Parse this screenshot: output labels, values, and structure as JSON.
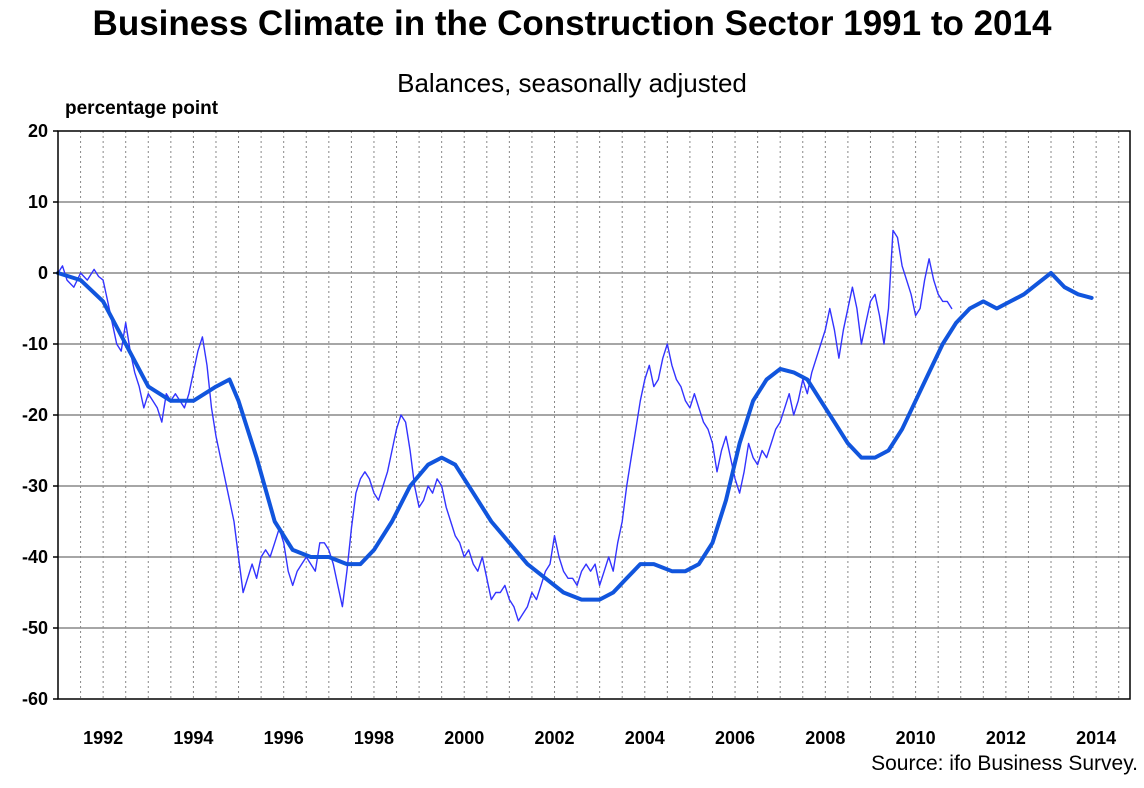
{
  "chart_data": {
    "type": "line",
    "title": "Business Climate in the Construction Sector 1991 to 2014",
    "subtitle": "Balances, seasonally adjusted",
    "ylabel": "percentage point",
    "source": "Source: ifo Business Survey.",
    "ylim": [
      -60,
      20
    ],
    "xlim": [
      1991.0,
      2014.75
    ],
    "yticks": [
      20,
      10,
      0,
      -10,
      -20,
      -30,
      -40,
      -50,
      -60
    ],
    "xticks": [
      1992,
      1994,
      1996,
      1998,
      2000,
      2002,
      2004,
      2006,
      2008,
      2010,
      2012,
      2014
    ],
    "grid": true,
    "colors": {
      "monthly": "#3333ff",
      "trend": "#1155dd"
    },
    "series": [
      {
        "role": "monthly",
        "points": [
          [
            1991.0,
            0
          ],
          [
            1991.1,
            1
          ],
          [
            1991.2,
            -1
          ],
          [
            1991.35,
            -2
          ],
          [
            1991.5,
            0
          ],
          [
            1991.65,
            -1
          ],
          [
            1991.8,
            0.5
          ],
          [
            1991.9,
            -0.5
          ],
          [
            1992.0,
            -1
          ],
          [
            1992.1,
            -4
          ],
          [
            1992.2,
            -7
          ],
          [
            1992.3,
            -10
          ],
          [
            1992.4,
            -11
          ],
          [
            1992.5,
            -7
          ],
          [
            1992.6,
            -11
          ],
          [
            1992.7,
            -14
          ],
          [
            1992.8,
            -16
          ],
          [
            1992.9,
            -19
          ],
          [
            1993.0,
            -17
          ],
          [
            1993.1,
            -18
          ],
          [
            1993.2,
            -19
          ],
          [
            1993.3,
            -21
          ],
          [
            1993.4,
            -17
          ],
          [
            1993.5,
            -18
          ],
          [
            1993.6,
            -17
          ],
          [
            1993.7,
            -18
          ],
          [
            1993.8,
            -19
          ],
          [
            1993.9,
            -17
          ],
          [
            1994.0,
            -14
          ],
          [
            1994.1,
            -11
          ],
          [
            1994.2,
            -9
          ],
          [
            1994.3,
            -13
          ],
          [
            1994.4,
            -19
          ],
          [
            1994.5,
            -23
          ],
          [
            1994.6,
            -26
          ],
          [
            1994.7,
            -29
          ],
          [
            1994.8,
            -32
          ],
          [
            1994.9,
            -35
          ],
          [
            1995.0,
            -40
          ],
          [
            1995.1,
            -45
          ],
          [
            1995.2,
            -43
          ],
          [
            1995.3,
            -41
          ],
          [
            1995.4,
            -43
          ],
          [
            1995.5,
            -40
          ],
          [
            1995.6,
            -39
          ],
          [
            1995.7,
            -40
          ],
          [
            1995.8,
            -38
          ],
          [
            1995.9,
            -36
          ],
          [
            1996.0,
            -38
          ],
          [
            1996.1,
            -42
          ],
          [
            1996.2,
            -44
          ],
          [
            1996.3,
            -42
          ],
          [
            1996.4,
            -41
          ],
          [
            1996.5,
            -40
          ],
          [
            1996.6,
            -41
          ],
          [
            1996.7,
            -42
          ],
          [
            1996.8,
            -38
          ],
          [
            1996.9,
            -38
          ],
          [
            1997.0,
            -39
          ],
          [
            1997.1,
            -41
          ],
          [
            1997.2,
            -44
          ],
          [
            1997.3,
            -47
          ],
          [
            1997.4,
            -42
          ],
          [
            1997.5,
            -36
          ],
          [
            1997.6,
            -31
          ],
          [
            1997.7,
            -29
          ],
          [
            1997.8,
            -28
          ],
          [
            1997.9,
            -29
          ],
          [
            1998.0,
            -31
          ],
          [
            1998.1,
            -32
          ],
          [
            1998.2,
            -30
          ],
          [
            1998.3,
            -28
          ],
          [
            1998.4,
            -25
          ],
          [
            1998.5,
            -22
          ],
          [
            1998.6,
            -20
          ],
          [
            1998.7,
            -21
          ],
          [
            1998.8,
            -25
          ],
          [
            1998.9,
            -30
          ],
          [
            1999.0,
            -33
          ],
          [
            1999.1,
            -32
          ],
          [
            1999.2,
            -30
          ],
          [
            1999.3,
            -31
          ],
          [
            1999.4,
            -29
          ],
          [
            1999.5,
            -30
          ],
          [
            1999.6,
            -33
          ],
          [
            1999.7,
            -35
          ],
          [
            1999.8,
            -37
          ],
          [
            1999.9,
            -38
          ],
          [
            2000.0,
            -40
          ],
          [
            2000.1,
            -39
          ],
          [
            2000.2,
            -41
          ],
          [
            2000.3,
            -42
          ],
          [
            2000.4,
            -40
          ],
          [
            2000.5,
            -43
          ],
          [
            2000.6,
            -46
          ],
          [
            2000.7,
            -45
          ],
          [
            2000.8,
            -45
          ],
          [
            2000.9,
            -44
          ],
          [
            2001.0,
            -46
          ],
          [
            2001.1,
            -47
          ],
          [
            2001.2,
            -49
          ],
          [
            2001.3,
            -48
          ],
          [
            2001.4,
            -47
          ],
          [
            2001.5,
            -45
          ],
          [
            2001.6,
            -46
          ],
          [
            2001.7,
            -44
          ],
          [
            2001.8,
            -42
          ],
          [
            2001.9,
            -41
          ],
          [
            2002.0,
            -37
          ],
          [
            2002.1,
            -40
          ],
          [
            2002.2,
            -42
          ],
          [
            2002.3,
            -43
          ],
          [
            2002.4,
            -43
          ],
          [
            2002.5,
            -44
          ],
          [
            2002.6,
            -42
          ],
          [
            2002.7,
            -41
          ],
          [
            2002.8,
            -42
          ],
          [
            2002.9,
            -41
          ],
          [
            2003.0,
            -44
          ],
          [
            2003.1,
            -42
          ],
          [
            2003.2,
            -40
          ],
          [
            2003.3,
            -42
          ],
          [
            2003.4,
            -38
          ],
          [
            2003.5,
            -35
          ],
          [
            2003.6,
            -30
          ],
          [
            2003.7,
            -26
          ],
          [
            2003.8,
            -22
          ],
          [
            2003.9,
            -18
          ],
          [
            2004.0,
            -15
          ],
          [
            2004.1,
            -13
          ],
          [
            2004.2,
            -16
          ],
          [
            2004.3,
            -15
          ],
          [
            2004.4,
            -12
          ],
          [
            2004.5,
            -10
          ],
          [
            2004.6,
            -13
          ],
          [
            2004.7,
            -15
          ],
          [
            2004.8,
            -16
          ],
          [
            2004.9,
            -18
          ],
          [
            2005.0,
            -19
          ],
          [
            2005.1,
            -17
          ],
          [
            2005.2,
            -19
          ],
          [
            2005.3,
            -21
          ],
          [
            2005.4,
            -22
          ],
          [
            2005.5,
            -24
          ],
          [
            2005.6,
            -28
          ],
          [
            2005.7,
            -25
          ],
          [
            2005.8,
            -23
          ],
          [
            2005.9,
            -26
          ],
          [
            2006.0,
            -29
          ],
          [
            2006.1,
            -31
          ],
          [
            2006.2,
            -28
          ],
          [
            2006.3,
            -24
          ],
          [
            2006.4,
            -26
          ],
          [
            2006.5,
            -27
          ],
          [
            2006.6,
            -25
          ],
          [
            2006.7,
            -26
          ],
          [
            2006.8,
            -24
          ],
          [
            2006.9,
            -22
          ],
          [
            2007.0,
            -21
          ],
          [
            2007.1,
            -19
          ],
          [
            2007.2,
            -17
          ],
          [
            2007.3,
            -20
          ],
          [
            2007.4,
            -18
          ],
          [
            2007.5,
            -15
          ],
          [
            2007.6,
            -17
          ],
          [
            2007.7,
            -14
          ],
          [
            2007.8,
            -12
          ],
          [
            2007.9,
            -10
          ],
          [
            2008.0,
            -8
          ],
          [
            2008.1,
            -5
          ],
          [
            2008.2,
            -8
          ],
          [
            2008.3,
            -12
          ],
          [
            2008.4,
            -8
          ],
          [
            2008.5,
            -5
          ],
          [
            2008.6,
            -2
          ],
          [
            2008.7,
            -5
          ],
          [
            2008.8,
            -10
          ],
          [
            2008.9,
            -7
          ],
          [
            2009.0,
            -4
          ],
          [
            2009.1,
            -3
          ],
          [
            2009.2,
            -6
          ],
          [
            2009.3,
            -10
          ],
          [
            2009.4,
            -5
          ],
          [
            2009.5,
            6
          ],
          [
            2009.6,
            5
          ],
          [
            2009.7,
            1
          ],
          [
            2009.8,
            -1
          ],
          [
            2009.9,
            -3
          ],
          [
            2010.0,
            -6
          ],
          [
            2010.1,
            -5
          ],
          [
            2010.2,
            -1
          ],
          [
            2010.3,
            2
          ],
          [
            2010.4,
            -1
          ],
          [
            2010.5,
            -3
          ],
          [
            2010.6,
            -4
          ],
          [
            2010.7,
            -4
          ],
          [
            2010.8,
            -5
          ]
        ]
      },
      {
        "role": "trend",
        "points": [
          [
            1991.0,
            0
          ],
          [
            1991.5,
            -1
          ],
          [
            1992.0,
            -4
          ],
          [
            1992.5,
            -10
          ],
          [
            1993.0,
            -16
          ],
          [
            1993.5,
            -18
          ],
          [
            1994.0,
            -18
          ],
          [
            1994.5,
            -16
          ],
          [
            1994.8,
            -15
          ],
          [
            1995.0,
            -18
          ],
          [
            1995.4,
            -26
          ],
          [
            1995.8,
            -35
          ],
          [
            1996.2,
            -39
          ],
          [
            1996.6,
            -40
          ],
          [
            1997.0,
            -40
          ],
          [
            1997.4,
            -41
          ],
          [
            1997.7,
            -41
          ],
          [
            1998.0,
            -39
          ],
          [
            1998.4,
            -35
          ],
          [
            1998.8,
            -30
          ],
          [
            1999.2,
            -27
          ],
          [
            1999.5,
            -26
          ],
          [
            1999.8,
            -27
          ],
          [
            2000.2,
            -31
          ],
          [
            2000.6,
            -35
          ],
          [
            2001.0,
            -38
          ],
          [
            2001.4,
            -41
          ],
          [
            2001.8,
            -43
          ],
          [
            2002.2,
            -45
          ],
          [
            2002.6,
            -46
          ],
          [
            2003.0,
            -46
          ],
          [
            2003.3,
            -45
          ],
          [
            2003.6,
            -43
          ],
          [
            2003.9,
            -41
          ],
          [
            2004.2,
            -41
          ],
          [
            2004.6,
            -42
          ],
          [
            2004.9,
            -42
          ],
          [
            2005.2,
            -41
          ],
          [
            2005.5,
            -38
          ],
          [
            2005.8,
            -32
          ],
          [
            2006.1,
            -24
          ],
          [
            2006.4,
            -18
          ],
          [
            2006.7,
            -15
          ],
          [
            2007.0,
            -13.5
          ],
          [
            2007.3,
            -14
          ],
          [
            2007.6,
            -15
          ],
          [
            2007.9,
            -18
          ],
          [
            2008.2,
            -21
          ],
          [
            2008.5,
            -24
          ],
          [
            2008.8,
            -26
          ],
          [
            2009.1,
            -26
          ],
          [
            2009.4,
            -25
          ],
          [
            2009.7,
            -22
          ],
          [
            2010.0,
            -18
          ],
          [
            2010.3,
            -14
          ],
          [
            2010.6,
            -10
          ],
          [
            2010.9,
            -7
          ],
          [
            2011.2,
            -5
          ],
          [
            2011.5,
            -4
          ],
          [
            2011.8,
            -5
          ],
          [
            2012.1,
            -4
          ],
          [
            2012.4,
            -3
          ],
          [
            2012.7,
            -1.5
          ],
          [
            2013.0,
            0
          ],
          [
            2013.3,
            -2
          ],
          [
            2013.6,
            -3
          ],
          [
            2013.9,
            -3.5
          ]
        ]
      }
    ]
  }
}
